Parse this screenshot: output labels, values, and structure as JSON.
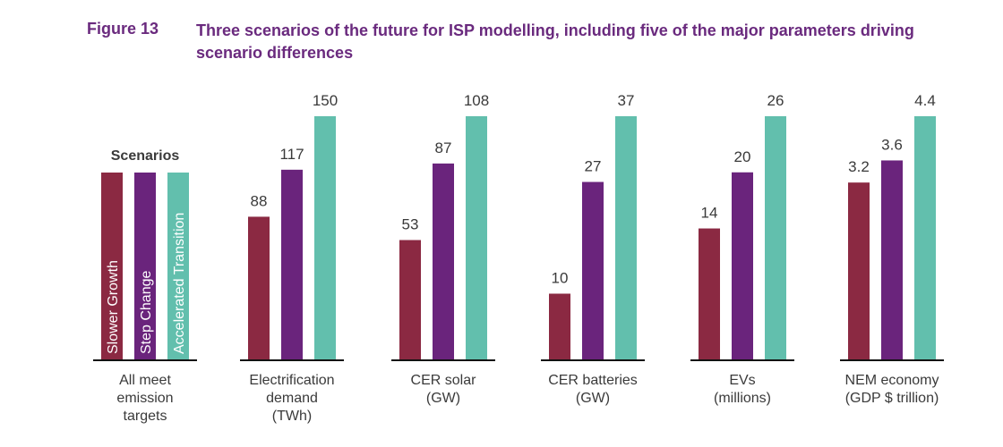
{
  "figure": {
    "label": "Figure 13",
    "title": "Three scenarios of the future for ISP modelling, including five of the major parameters driving scenario differences"
  },
  "chart_data": {
    "type": "bar",
    "title": "Three scenarios of the future for ISP modelling, including five of the major parameters driving scenario differences",
    "legend": {
      "title": "Scenarios",
      "placement": "left",
      "category": [
        "All meet",
        "emission",
        "targets"
      ]
    },
    "series": [
      {
        "name": "Slower Growth",
        "color": "#8b2942",
        "values": [
          88,
          53,
          10,
          14,
          3.2
        ]
      },
      {
        "name": "Step Change",
        "color": "#6a247c",
        "values": [
          117,
          87,
          27,
          20,
          3.6
        ]
      },
      {
        "name": "Accelerated Transition",
        "color": "#62bfad",
        "values": [
          150,
          108,
          37,
          26,
          4.4
        ]
      }
    ],
    "categories": [
      {
        "label": [
          "Electrification",
          "demand",
          "(TWh)"
        ],
        "labels_text": [
          "88",
          "117",
          "150"
        ]
      },
      {
        "label": [
          "CER solar",
          "(GW)"
        ],
        "labels_text": [
          "53",
          "87",
          "108"
        ]
      },
      {
        "label": [
          "CER batteries",
          "(GW)"
        ],
        "labels_text": [
          "10",
          "27",
          "37"
        ]
      },
      {
        "label": [
          "EVs",
          "(millions)"
        ],
        "labels_text": [
          "14",
          "20",
          "26"
        ]
      },
      {
        "label": [
          "NEM economy",
          "(GDP $ trillion)"
        ],
        "labels_text": [
          "3.2",
          "3.6",
          "4.4"
        ]
      }
    ],
    "grid": false,
    "axis": "independent scale per category"
  }
}
